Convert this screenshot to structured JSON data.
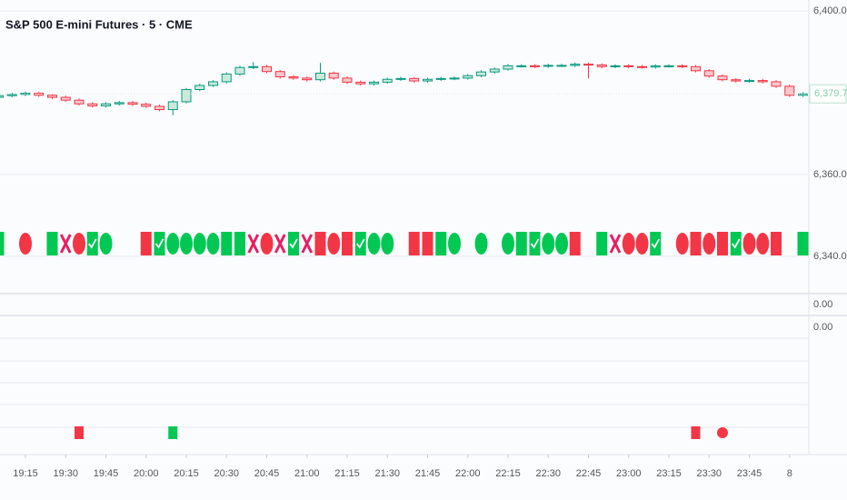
{
  "chart_data": {
    "type": "candlestick",
    "title": "S&P 500 E-mini Futures · 5 · CME",
    "categories": [
      null,
      null,
      "19:15",
      null,
      null,
      "19:30",
      null,
      null,
      "19:45",
      null,
      null,
      "20:00",
      null,
      null,
      "20:15",
      null,
      null,
      "20:30",
      null,
      null,
      "20:45",
      null,
      null,
      "21:00",
      null,
      null,
      "21:15",
      null,
      null,
      "21:30",
      null,
      null,
      "21:45",
      null,
      null,
      "22:00",
      null,
      null,
      "22:15",
      null,
      null,
      "22:30",
      null,
      null,
      "22:45",
      null,
      null,
      "23:00",
      null,
      null,
      "23:15",
      null,
      null,
      "23:30",
      null,
      null,
      "23:45",
      null,
      null,
      "8",
      null
    ],
    "open": [
      6378.9,
      6379.3,
      6379.6,
      6379.9,
      6379.4,
      6378.9,
      6378.2,
      6377.3,
      6376.8,
      6377.3,
      6377.6,
      6377.2,
      6376.7,
      6375.9,
      6377.8,
      6380.8,
      6381.8,
      6382.7,
      6384.6,
      6386.2,
      6386.4,
      6385.2,
      6383.9,
      6383.6,
      6383.2,
      6384.8,
      6383.6,
      6382.6,
      6382.2,
      6382.6,
      6383.3,
      6383.5,
      6382.9,
      6383.3,
      6383.5,
      6383.6,
      6384.2,
      6385.1,
      6385.8,
      6386.6,
      6386.6,
      6386.5,
      6386.7,
      6386.7,
      6387.0,
      6386.8,
      6386.4,
      6386.6,
      6386.4,
      6386.3,
      6386.6,
      6386.6,
      6386.4,
      6385.4,
      6384.1,
      6383.2,
      6382.9,
      6383.0,
      6382.7,
      6381.6,
      6379.4
    ],
    "high": [
      6379.7,
      6380.0,
      6380.3,
      6380.3,
      6379.8,
      6379.3,
      6378.6,
      6377.7,
      6377.7,
      6378.0,
      6378.0,
      6377.6,
      6377.1,
      6378.2,
      6381.2,
      6382.2,
      6383.1,
      6385.0,
      6386.6,
      6387.5,
      6386.8,
      6385.6,
      6384.3,
      6384.0,
      6387.3,
      6385.2,
      6384.0,
      6383.0,
      6383.0,
      6383.7,
      6383.9,
      6383.9,
      6383.7,
      6383.9,
      6384.0,
      6384.6,
      6385.5,
      6386.2,
      6387.0,
      6387.0,
      6387.0,
      6387.1,
      6387.1,
      6387.4,
      6387.4,
      6387.2,
      6387.0,
      6387.0,
      6386.8,
      6387.0,
      6387.0,
      6387.0,
      6386.8,
      6385.8,
      6384.5,
      6383.6,
      6383.4,
      6383.4,
      6383.1,
      6382.0,
      6380.1
    ],
    "low": [
      6378.5,
      6378.9,
      6379.2,
      6379.0,
      6378.5,
      6377.8,
      6376.9,
      6376.4,
      6376.4,
      6376.9,
      6376.8,
      6376.3,
      6375.5,
      6374.5,
      6377.4,
      6380.4,
      6381.4,
      6382.3,
      6384.2,
      6385.8,
      6384.8,
      6383.5,
      6383.2,
      6382.8,
      6382.8,
      6383.2,
      6382.2,
      6381.8,
      6381.8,
      6382.2,
      6382.9,
      6382.5,
      6382.5,
      6382.9,
      6383.1,
      6383.2,
      6383.8,
      6384.7,
      6385.4,
      6386.2,
      6386.1,
      6386.1,
      6386.3,
      6386.3,
      6383.5,
      6386.0,
      6386.0,
      6386.0,
      6385.9,
      6385.9,
      6386.2,
      6386.0,
      6385.0,
      6383.7,
      6382.8,
      6382.5,
      6382.5,
      6382.3,
      6381.2,
      6379.0,
      6379.0
    ],
    "close": [
      6379.3,
      6379.6,
      6379.9,
      6379.4,
      6378.9,
      6378.2,
      6377.3,
      6376.8,
      6377.3,
      6377.6,
      6377.2,
      6376.7,
      6375.9,
      6377.8,
      6380.8,
      6381.8,
      6382.7,
      6384.6,
      6386.2,
      6386.4,
      6385.2,
      6383.9,
      6383.6,
      6383.2,
      6384.8,
      6383.6,
      6382.6,
      6382.2,
      6382.6,
      6383.3,
      6383.5,
      6382.9,
      6383.3,
      6383.5,
      6383.6,
      6384.2,
      6385.1,
      6385.8,
      6386.6,
      6386.6,
      6386.5,
      6386.7,
      6386.7,
      6387.0,
      6386.8,
      6386.4,
      6386.6,
      6386.4,
      6386.3,
      6386.6,
      6386.6,
      6386.4,
      6385.4,
      6384.1,
      6383.2,
      6382.9,
      6383.0,
      6382.7,
      6381.6,
      6379.4,
      6379.75
    ],
    "up_color": "#089981",
    "down_color": "#f23645",
    "last_price": {
      "value": 6379.75,
      "label": "6,379.75"
    },
    "ylim": [
      6331.1,
      6402.7
    ],
    "yticks": [
      {
        "value": 6400,
        "label": "6,400.00"
      },
      {
        "value": 6360,
        "label": "6,360.00"
      },
      {
        "value": 6340,
        "label": "6,340.00"
      }
    ],
    "grid": true,
    "signal_rows": [
      [
        "green-square",
        null,
        "red-circle",
        null,
        "green-square",
        "cross",
        "red-circle",
        "check",
        "green-circle",
        null,
        null,
        "red-square",
        "check",
        "green-circle",
        "green-circle",
        "green-circle",
        "green-circle",
        "green-square",
        "green-square",
        "cross",
        "red-circle",
        "cross",
        "check",
        "cross",
        "red-square",
        "red-circle",
        "red-square",
        "check",
        "green-circle",
        "green-circle",
        null,
        "red-square",
        "red-square",
        "green-square",
        "green-circle",
        null,
        "green-circle",
        null,
        "green-circle",
        "green-square",
        "check",
        "green-circle",
        "green-circle",
        "red-square",
        null,
        "green-square",
        "cross",
        "red-circle",
        "red-circle",
        "check",
        null,
        "red-circle",
        "red-square",
        "red-circle",
        "red-square",
        "check",
        "red-circle",
        "red-circle",
        "red-square",
        null,
        "green-square"
      ],
      [
        null,
        null,
        null,
        null,
        null,
        null,
        "red-square",
        null,
        null,
        null,
        null,
        null,
        null,
        "green-square",
        null,
        null,
        null,
        null,
        null,
        null,
        null,
        null,
        null,
        null,
        null,
        null,
        null,
        null,
        null,
        null,
        null,
        null,
        null,
        null,
        null,
        null,
        null,
        null,
        null,
        null,
        null,
        null,
        null,
        null,
        null,
        null,
        null,
        null,
        null,
        null,
        null,
        null,
        "red-square",
        null,
        "red-circle",
        null,
        null,
        null,
        null,
        null,
        null
      ]
    ],
    "signal_colors": {
      "green": "#00c853",
      "red": "#f23645",
      "cross": "#e91e63"
    },
    "lower_pane_labels": [
      "0.00",
      "0.00"
    ]
  }
}
